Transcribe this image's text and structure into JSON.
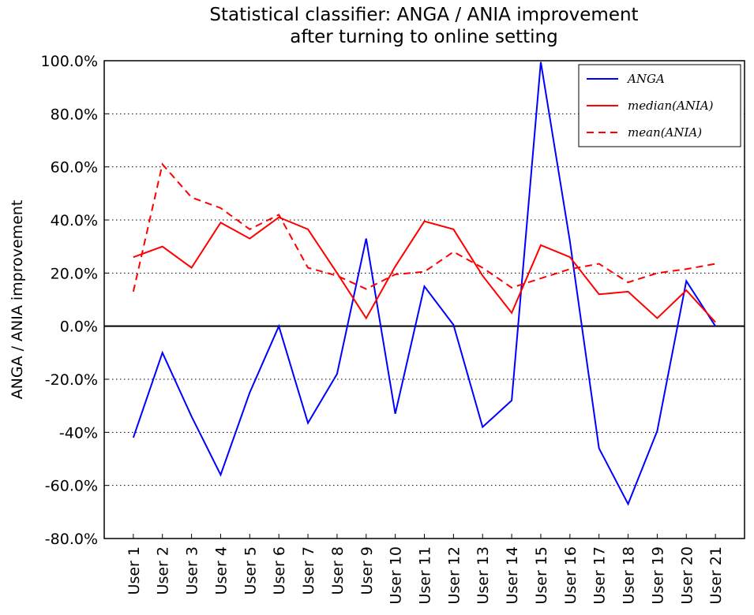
{
  "chart_data": {
    "type": "line",
    "title": [
      "Statistical classifier: ANGA / ANIA improvement",
      "after turning to online setting"
    ],
    "y_label": "ANGA / ANIA improvement",
    "categories": [
      "User 1",
      "User 2",
      "User 3",
      "User 4",
      "User 5",
      "User 6",
      "User 7",
      "User 8",
      "User 9",
      "User 10",
      "User 11",
      "User 12",
      "User 13",
      "User 14",
      "User 15",
      "User 16",
      "User 17",
      "User 18",
      "User 19",
      "User 20",
      "User 21"
    ],
    "series": [
      {
        "name": "ANGA",
        "color": "#0000ff",
        "linestyle": "solid",
        "values": [
          -42,
          -10,
          -34,
          -56,
          -25,
          0,
          -36.5,
          -18,
          33,
          -33,
          15,
          0.5,
          -38,
          -28,
          99.5,
          32,
          -46,
          -67,
          -39.5,
          17,
          0
        ]
      },
      {
        "name": "median(ANIA)",
        "color": "#ff0000",
        "linestyle": "solid",
        "values": [
          26,
          30,
          22,
          39,
          33,
          41,
          36.5,
          20,
          3,
          22.5,
          39.5,
          36.5,
          19,
          5,
          30.5,
          26,
          12,
          13,
          3,
          13.5,
          1.5
        ]
      },
      {
        "name": "mean(ANIA)",
        "color": "#ff0000",
        "linestyle": "dashed",
        "values": [
          13,
          61,
          48.5,
          44.5,
          36.5,
          42,
          22,
          19,
          14,
          19.5,
          20.5,
          28,
          22,
          14.5,
          18,
          21.5,
          23.5,
          16.5,
          20,
          21.5,
          23.5
        ]
      }
    ],
    "ylim": [
      -80,
      100
    ],
    "yticks": [
      {
        "value": -80,
        "label": "-80.0%"
      },
      {
        "value": -60,
        "label": "-60.0%"
      },
      {
        "value": -40,
        "label": "-40%"
      },
      {
        "value": -20,
        "label": "-20.0%"
      },
      {
        "value": 0,
        "label": "0.0%"
      },
      {
        "value": 20,
        "label": "20.0%"
      },
      {
        "value": 40,
        "label": "40.0%"
      },
      {
        "value": 60,
        "label": "60.0%"
      },
      {
        "value": 80,
        "label": "80.0%"
      },
      {
        "value": 100,
        "label": "100.0%"
      }
    ],
    "grid": true,
    "legend": "upper right"
  }
}
